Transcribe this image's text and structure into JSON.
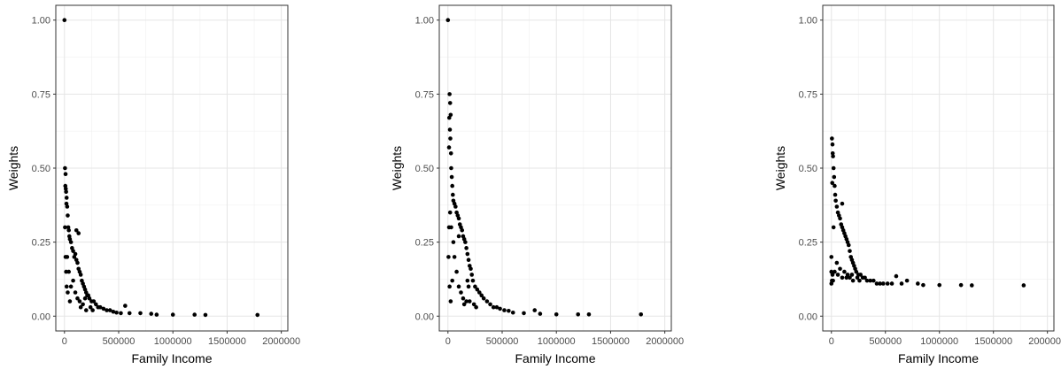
{
  "chart_data": [
    {
      "type": "scatter",
      "xlabel": "Family Income",
      "ylabel": "Weights",
      "xlim": [
        -80000,
        2060000
      ],
      "ylim": [
        -0.05,
        1.05
      ],
      "x_ticks": [
        0,
        500000,
        1000000,
        1500000,
        2000000
      ],
      "x_tick_labels": [
        "0",
        "500000",
        "1000000",
        "1500000",
        "2000000"
      ],
      "y_ticks": [
        0,
        0.25,
        0.5,
        0.75,
        1.0
      ],
      "y_tick_labels": [
        "0.00",
        "0.25",
        "0.50",
        "0.75",
        "1.00"
      ],
      "grid": true,
      "legend": "none",
      "point_color": "#000000",
      "points": [
        [
          0,
          1.0
        ],
        [
          5000,
          0.5
        ],
        [
          10000,
          0.48
        ],
        [
          8000,
          0.44
        ],
        [
          12000,
          0.43
        ],
        [
          15000,
          0.42
        ],
        [
          20000,
          0.4
        ],
        [
          25000,
          0.37
        ],
        [
          30000,
          0.34
        ],
        [
          18000,
          0.38
        ],
        [
          35000,
          0.3
        ],
        [
          40000,
          0.29
        ],
        [
          45000,
          0.27
        ],
        [
          50000,
          0.26
        ],
        [
          60000,
          0.25
        ],
        [
          70000,
          0.23
        ],
        [
          80000,
          0.22
        ],
        [
          90000,
          0.2
        ],
        [
          100000,
          0.21
        ],
        [
          110000,
          0.19
        ],
        [
          120000,
          0.18
        ],
        [
          130000,
          0.16
        ],
        [
          140000,
          0.15
        ],
        [
          150000,
          0.14
        ],
        [
          160000,
          0.12
        ],
        [
          170000,
          0.11
        ],
        [
          180000,
          0.1
        ],
        [
          190000,
          0.09
        ],
        [
          200000,
          0.08
        ],
        [
          210000,
          0.07
        ],
        [
          220000,
          0.07
        ],
        [
          230000,
          0.06
        ],
        [
          250000,
          0.05
        ],
        [
          270000,
          0.05
        ],
        [
          290000,
          0.04
        ],
        [
          310000,
          0.03
        ],
        [
          330000,
          0.03
        ],
        [
          360000,
          0.025
        ],
        [
          390000,
          0.02
        ],
        [
          420000,
          0.02
        ],
        [
          450000,
          0.015
        ],
        [
          480000,
          0.012
        ],
        [
          520000,
          0.01
        ],
        [
          560000,
          0.035
        ],
        [
          600000,
          0.01
        ],
        [
          700000,
          0.01
        ],
        [
          800000,
          0.008
        ],
        [
          850000,
          0.005
        ],
        [
          1000000,
          0.005
        ],
        [
          1200000,
          0.005
        ],
        [
          1300000,
          0.004
        ],
        [
          1780000,
          0.004
        ],
        [
          110000,
          0.29
        ],
        [
          130000,
          0.28
        ],
        [
          60000,
          0.1
        ],
        [
          80000,
          0.12
        ],
        [
          100000,
          0.08
        ],
        [
          120000,
          0.06
        ],
        [
          140000,
          0.05
        ],
        [
          50000,
          0.05
        ],
        [
          30000,
          0.08
        ],
        [
          20000,
          0.1
        ],
        [
          10000,
          0.2
        ],
        [
          5000,
          0.3
        ],
        [
          15000,
          0.15
        ],
        [
          25000,
          0.2
        ],
        [
          40000,
          0.15
        ],
        [
          150000,
          0.03
        ],
        [
          170000,
          0.04
        ],
        [
          190000,
          0.06
        ],
        [
          200000,
          0.02
        ],
        [
          240000,
          0.03
        ],
        [
          260000,
          0.02
        ]
      ]
    },
    {
      "type": "scatter",
      "xlabel": "Family Income",
      "ylabel": "Weights",
      "xlim": [
        -80000,
        2060000
      ],
      "ylim": [
        -0.05,
        1.05
      ],
      "x_ticks": [
        0,
        500000,
        1000000,
        1500000,
        2000000
      ],
      "x_tick_labels": [
        "0",
        "500000",
        "1000000",
        "1500000",
        "2000000"
      ],
      "y_ticks": [
        0,
        0.25,
        0.5,
        0.75,
        1.0
      ],
      "y_tick_labels": [
        "0.00",
        "0.25",
        "0.50",
        "0.75",
        "1.00"
      ],
      "grid": true,
      "legend": "none",
      "point_color": "#000000",
      "points": [
        [
          0,
          1.0
        ],
        [
          15000,
          0.75
        ],
        [
          20000,
          0.72
        ],
        [
          25000,
          0.68
        ],
        [
          12000,
          0.67
        ],
        [
          18000,
          0.63
        ],
        [
          22000,
          0.6
        ],
        [
          10000,
          0.57
        ],
        [
          28000,
          0.55
        ],
        [
          30000,
          0.5
        ],
        [
          35000,
          0.47
        ],
        [
          40000,
          0.44
        ],
        [
          45000,
          0.41
        ],
        [
          50000,
          0.39
        ],
        [
          60000,
          0.38
        ],
        [
          70000,
          0.37
        ],
        [
          80000,
          0.35
        ],
        [
          90000,
          0.34
        ],
        [
          100000,
          0.33
        ],
        [
          110000,
          0.31
        ],
        [
          120000,
          0.3
        ],
        [
          130000,
          0.29
        ],
        [
          140000,
          0.27
        ],
        [
          150000,
          0.26
        ],
        [
          160000,
          0.25
        ],
        [
          170000,
          0.23
        ],
        [
          180000,
          0.21
        ],
        [
          190000,
          0.19
        ],
        [
          200000,
          0.17
        ],
        [
          210000,
          0.16
        ],
        [
          220000,
          0.14
        ],
        [
          230000,
          0.12
        ],
        [
          250000,
          0.1
        ],
        [
          270000,
          0.09
        ],
        [
          290000,
          0.08
        ],
        [
          310000,
          0.07
        ],
        [
          330000,
          0.06
        ],
        [
          360000,
          0.05
        ],
        [
          390000,
          0.04
        ],
        [
          420000,
          0.03
        ],
        [
          450000,
          0.03
        ],
        [
          480000,
          0.025
        ],
        [
          520000,
          0.02
        ],
        [
          560000,
          0.018
        ],
        [
          600000,
          0.012
        ],
        [
          700000,
          0.01
        ],
        [
          800000,
          0.02
        ],
        [
          850000,
          0.008
        ],
        [
          1000000,
          0.006
        ],
        [
          1200000,
          0.006
        ],
        [
          1300000,
          0.006
        ],
        [
          1780000,
          0.006
        ],
        [
          60000,
          0.2
        ],
        [
          80000,
          0.15
        ],
        [
          100000,
          0.1
        ],
        [
          120000,
          0.08
        ],
        [
          140000,
          0.06
        ],
        [
          50000,
          0.25
        ],
        [
          30000,
          0.3
        ],
        [
          20000,
          0.35
        ],
        [
          10000,
          0.3
        ],
        [
          5000,
          0.2
        ],
        [
          15000,
          0.1
        ],
        [
          25000,
          0.05
        ],
        [
          40000,
          0.12
        ],
        [
          150000,
          0.04
        ],
        [
          170000,
          0.05
        ],
        [
          190000,
          0.1
        ],
        [
          200000,
          0.05
        ],
        [
          240000,
          0.04
        ],
        [
          260000,
          0.03
        ],
        [
          100000,
          0.27
        ],
        [
          180000,
          0.12
        ]
      ]
    },
    {
      "type": "scatter",
      "xlabel": "Family Income",
      "ylabel": "Weights",
      "xlim": [
        -80000,
        2060000
      ],
      "ylim": [
        -0.05,
        1.05
      ],
      "x_ticks": [
        0,
        500000,
        1000000,
        1500000,
        2000000
      ],
      "x_tick_labels": [
        "0",
        "500000",
        "1000000",
        "1500000",
        "2000000"
      ],
      "y_ticks": [
        0,
        0.25,
        0.5,
        0.75,
        1.0
      ],
      "y_tick_labels": [
        "0.00",
        "0.25",
        "0.50",
        "0.75",
        "1.00"
      ],
      "grid": true,
      "legend": "none",
      "point_color": "#000000",
      "points": [
        [
          5000,
          0.6
        ],
        [
          10000,
          0.58
        ],
        [
          12000,
          0.55
        ],
        [
          15000,
          0.54
        ],
        [
          20000,
          0.5
        ],
        [
          25000,
          0.47
        ],
        [
          8000,
          0.45
        ],
        [
          30000,
          0.44
        ],
        [
          35000,
          0.41
        ],
        [
          40000,
          0.39
        ],
        [
          50000,
          0.37
        ],
        [
          60000,
          0.35
        ],
        [
          70000,
          0.34
        ],
        [
          80000,
          0.33
        ],
        [
          90000,
          0.31
        ],
        [
          100000,
          0.3
        ],
        [
          110000,
          0.29
        ],
        [
          120000,
          0.28
        ],
        [
          130000,
          0.27
        ],
        [
          140000,
          0.26
        ],
        [
          150000,
          0.25
        ],
        [
          160000,
          0.24
        ],
        [
          170000,
          0.22
        ],
        [
          180000,
          0.2
        ],
        [
          190000,
          0.19
        ],
        [
          200000,
          0.18
        ],
        [
          210000,
          0.17
        ],
        [
          220000,
          0.16
        ],
        [
          230000,
          0.15
        ],
        [
          250000,
          0.14
        ],
        [
          270000,
          0.14
        ],
        [
          290000,
          0.13
        ],
        [
          310000,
          0.13
        ],
        [
          330000,
          0.12
        ],
        [
          360000,
          0.12
        ],
        [
          390000,
          0.12
        ],
        [
          420000,
          0.11
        ],
        [
          450000,
          0.11
        ],
        [
          480000,
          0.11
        ],
        [
          520000,
          0.11
        ],
        [
          560000,
          0.11
        ],
        [
          600000,
          0.135
        ],
        [
          650000,
          0.11
        ],
        [
          700000,
          0.12
        ],
        [
          800000,
          0.11
        ],
        [
          850000,
          0.105
        ],
        [
          1000000,
          0.105
        ],
        [
          1200000,
          0.105
        ],
        [
          1300000,
          0.104
        ],
        [
          1780000,
          0.104
        ],
        [
          0,
          0.2
        ],
        [
          0,
          0.15
        ],
        [
          0,
          0.11
        ],
        [
          5000,
          0.12
        ],
        [
          10000,
          0.14
        ],
        [
          15000,
          0.12
        ],
        [
          30000,
          0.15
        ],
        [
          50000,
          0.18
        ],
        [
          60000,
          0.14
        ],
        [
          80000,
          0.16
        ],
        [
          100000,
          0.13
        ],
        [
          120000,
          0.15
        ],
        [
          140000,
          0.13
        ],
        [
          150000,
          0.14
        ],
        [
          170000,
          0.13
        ],
        [
          190000,
          0.14
        ],
        [
          200000,
          0.12
        ],
        [
          240000,
          0.13
        ],
        [
          260000,
          0.12
        ],
        [
          100000,
          0.38
        ],
        [
          20000,
          0.3
        ]
      ]
    }
  ]
}
